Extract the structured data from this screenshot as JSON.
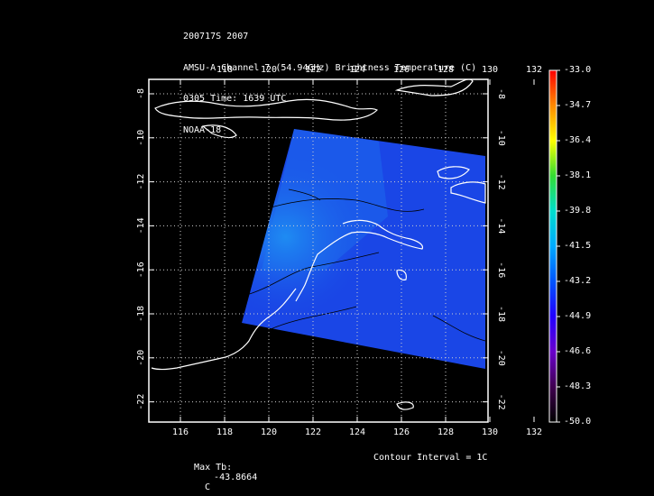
{
  "title_lines": [
    "200717S 2007",
    "AMSU-A Channel 7 (54.94GHz) Brightness Temperature (C)",
    "0305 Time: 1639 UTC",
    "NOAA-18"
  ],
  "map": {
    "lon_ticks_top": [
      "118",
      "120",
      "122",
      "124",
      "126",
      "128",
      "130",
      "132"
    ],
    "lon_ticks_bottom": [
      "116",
      "118",
      "120",
      "122",
      "124",
      "126",
      "128",
      "130",
      "132"
    ],
    "lat_ticks": [
      "-8",
      "-10",
      "-12",
      "-14",
      "-16",
      "-18",
      "-20",
      "-22"
    ],
    "grid": true,
    "colors": {
      "frame": "#ffffff",
      "grid": "#cfcfcf",
      "swath": "#1a46e6",
      "swath_warm": "#1d8ef2",
      "coast": "#ffffff",
      "contour": "#000000"
    }
  },
  "colorbar": {
    "labels": [
      "-33.0",
      "-34.7",
      "-36.4",
      "-38.1",
      "-39.8",
      "-41.5",
      "-43.2",
      "-44.9",
      "-46.6",
      "-48.3",
      "-50.0"
    ],
    "colors": [
      "#ff0000",
      "#ff8a00",
      "#ffff00",
      "#33dd33",
      "#00ddcc",
      "#00aaff",
      "#0055ff",
      "#2200ff",
      "#6a00cc",
      "#400050",
      "#000000"
    ]
  },
  "footer": {
    "max_tb_label": "Max Tb:",
    "max_tb_value": "-43.8664",
    "max_tb_unit": "C",
    "contour_text": "Contour Interval = 1C"
  }
}
